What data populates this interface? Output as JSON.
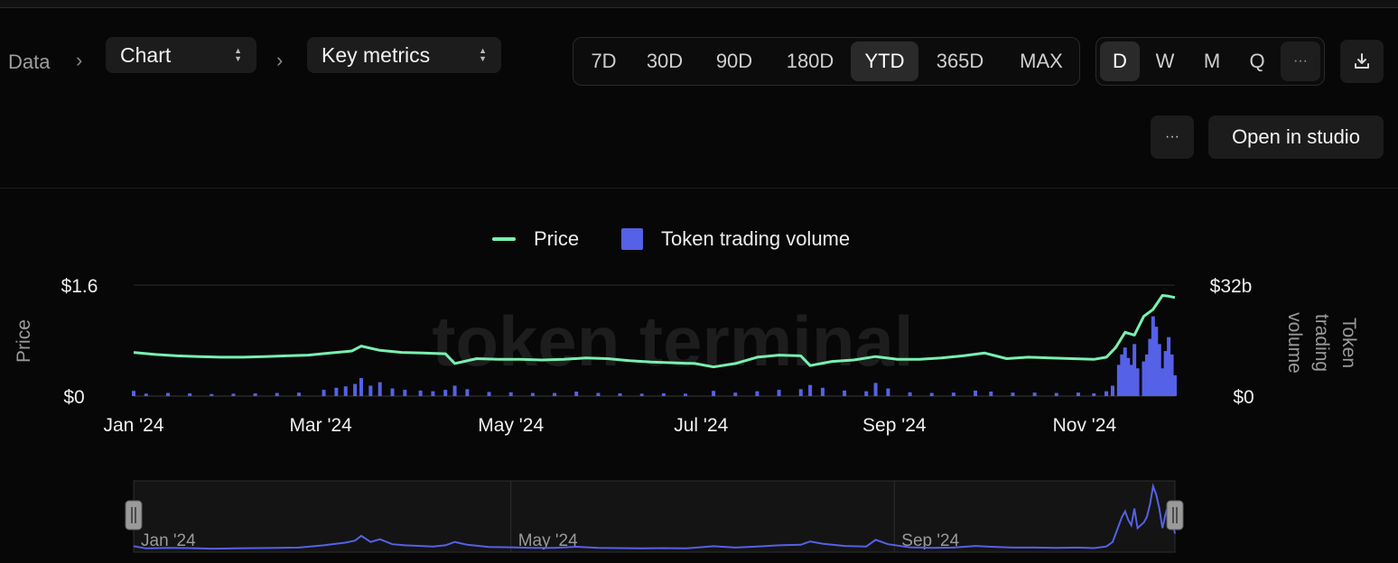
{
  "toolbar": {
    "breadcrumb_root": "Data",
    "view_select": "Chart",
    "metric_select": "Key metrics",
    "ranges": [
      "7D",
      "30D",
      "90D",
      "180D",
      "YTD",
      "365D",
      "MAX"
    ],
    "active_range": "YTD",
    "granularities": [
      "D",
      "W",
      "M",
      "Q"
    ],
    "active_granularity": "D",
    "more_label": "···",
    "open_studio_label": "Open in studio"
  },
  "watermark": "token terminal",
  "colors": {
    "price": "#79f0b0",
    "volume": "#5561e6",
    "background": "#070707"
  },
  "chart_data": {
    "type": "line+bar",
    "x_range": [
      "2024-01-01",
      "2024-11-30"
    ],
    "x_ticks": [
      "Jan '24",
      "Mar '24",
      "May '24",
      "Jul '24",
      "Sep '24",
      "Nov '24"
    ],
    "y_left": {
      "label": "Price",
      "range": [
        0,
        1.6
      ],
      "tick_labels": [
        "$0",
        "$1.6"
      ]
    },
    "y_right": {
      "label": "Token trading volume",
      "range": [
        0,
        32000000000
      ],
      "tick_labels": [
        "$0",
        "$32b"
      ]
    },
    "legend": [
      "Price",
      "Token trading volume"
    ],
    "legend_position": "top-center",
    "series": [
      {
        "name": "Price",
        "type": "line",
        "axis": "left",
        "points": [
          [
            "2024-01-01",
            0.63
          ],
          [
            "2024-01-08",
            0.6
          ],
          [
            "2024-01-15",
            0.58
          ],
          [
            "2024-01-22",
            0.57
          ],
          [
            "2024-01-29",
            0.56
          ],
          [
            "2024-02-05",
            0.56
          ],
          [
            "2024-02-12",
            0.57
          ],
          [
            "2024-02-19",
            0.58
          ],
          [
            "2024-02-26",
            0.59
          ],
          [
            "2024-03-04",
            0.62
          ],
          [
            "2024-03-11",
            0.65
          ],
          [
            "2024-03-14",
            0.72
          ],
          [
            "2024-03-20",
            0.66
          ],
          [
            "2024-03-27",
            0.63
          ],
          [
            "2024-04-03",
            0.62
          ],
          [
            "2024-04-10",
            0.61
          ],
          [
            "2024-04-13",
            0.47
          ],
          [
            "2024-04-20",
            0.54
          ],
          [
            "2024-04-27",
            0.53
          ],
          [
            "2024-05-04",
            0.53
          ],
          [
            "2024-05-11",
            0.52
          ],
          [
            "2024-05-18",
            0.53
          ],
          [
            "2024-05-25",
            0.55
          ],
          [
            "2024-06-01",
            0.54
          ],
          [
            "2024-06-08",
            0.51
          ],
          [
            "2024-06-15",
            0.49
          ],
          [
            "2024-06-22",
            0.48
          ],
          [
            "2024-06-29",
            0.47
          ],
          [
            "2024-07-05",
            0.42
          ],
          [
            "2024-07-12",
            0.47
          ],
          [
            "2024-07-19",
            0.56
          ],
          [
            "2024-07-26",
            0.59
          ],
          [
            "2024-08-02",
            0.58
          ],
          [
            "2024-08-05",
            0.44
          ],
          [
            "2024-08-12",
            0.5
          ],
          [
            "2024-08-19",
            0.52
          ],
          [
            "2024-08-26",
            0.57
          ],
          [
            "2024-09-02",
            0.53
          ],
          [
            "2024-09-09",
            0.53
          ],
          [
            "2024-09-16",
            0.55
          ],
          [
            "2024-09-23",
            0.58
          ],
          [
            "2024-09-30",
            0.62
          ],
          [
            "2024-10-07",
            0.54
          ],
          [
            "2024-10-14",
            0.56
          ],
          [
            "2024-10-21",
            0.55
          ],
          [
            "2024-10-28",
            0.54
          ],
          [
            "2024-11-04",
            0.53
          ],
          [
            "2024-11-08",
            0.56
          ],
          [
            "2024-11-11",
            0.7
          ],
          [
            "2024-11-14",
            0.92
          ],
          [
            "2024-11-17",
            0.88
          ],
          [
            "2024-11-20",
            1.15
          ],
          [
            "2024-11-23",
            1.25
          ],
          [
            "2024-11-26",
            1.45
          ],
          [
            "2024-11-28",
            1.44
          ],
          [
            "2024-11-30",
            1.42
          ]
        ]
      },
      {
        "name": "Token trading volume",
        "type": "bar",
        "axis": "right",
        "points": [
          [
            "2024-01-01",
            1500000000
          ],
          [
            "2024-01-05",
            700000000
          ],
          [
            "2024-01-12",
            900000000
          ],
          [
            "2024-01-19",
            800000000
          ],
          [
            "2024-01-26",
            600000000
          ],
          [
            "2024-02-02",
            700000000
          ],
          [
            "2024-02-09",
            800000000
          ],
          [
            "2024-02-16",
            900000000
          ],
          [
            "2024-02-23",
            1000000000
          ],
          [
            "2024-03-02",
            1800000000
          ],
          [
            "2024-03-06",
            2400000000
          ],
          [
            "2024-03-09",
            2800000000
          ],
          [
            "2024-03-12",
            3500000000
          ],
          [
            "2024-03-14",
            5200000000
          ],
          [
            "2024-03-17",
            3000000000
          ],
          [
            "2024-03-20",
            4000000000
          ],
          [
            "2024-03-24",
            2200000000
          ],
          [
            "2024-03-28",
            1800000000
          ],
          [
            "2024-04-02",
            1600000000
          ],
          [
            "2024-04-06",
            1400000000
          ],
          [
            "2024-04-10",
            1800000000
          ],
          [
            "2024-04-13",
            3000000000
          ],
          [
            "2024-04-17",
            2000000000
          ],
          [
            "2024-04-24",
            1200000000
          ],
          [
            "2024-05-01",
            1100000000
          ],
          [
            "2024-05-08",
            900000000
          ],
          [
            "2024-05-15",
            900000000
          ],
          [
            "2024-05-22",
            1300000000
          ],
          [
            "2024-05-29",
            900000000
          ],
          [
            "2024-06-05",
            800000000
          ],
          [
            "2024-06-12",
            700000000
          ],
          [
            "2024-06-19",
            800000000
          ],
          [
            "2024-06-26",
            700000000
          ],
          [
            "2024-07-05",
            1500000000
          ],
          [
            "2024-07-12",
            1000000000
          ],
          [
            "2024-07-19",
            1400000000
          ],
          [
            "2024-07-26",
            1800000000
          ],
          [
            "2024-08-02",
            2000000000
          ],
          [
            "2024-08-05",
            3200000000
          ],
          [
            "2024-08-09",
            2400000000
          ],
          [
            "2024-08-16",
            1600000000
          ],
          [
            "2024-08-23",
            1400000000
          ],
          [
            "2024-08-26",
            3800000000
          ],
          [
            "2024-08-30",
            2200000000
          ],
          [
            "2024-09-06",
            1100000000
          ],
          [
            "2024-09-13",
            900000000
          ],
          [
            "2024-09-20",
            1000000000
          ],
          [
            "2024-09-27",
            1600000000
          ],
          [
            "2024-10-02",
            1300000000
          ],
          [
            "2024-10-09",
            1000000000
          ],
          [
            "2024-10-16",
            1000000000
          ],
          [
            "2024-10-23",
            900000000
          ],
          [
            "2024-10-30",
            1000000000
          ],
          [
            "2024-11-04",
            800000000
          ],
          [
            "2024-11-08",
            1400000000
          ],
          [
            "2024-11-10",
            3000000000
          ],
          [
            "2024-11-12",
            9000000000
          ],
          [
            "2024-11-13",
            12000000000
          ],
          [
            "2024-11-14",
            14000000000
          ],
          [
            "2024-11-15",
            11000000000
          ],
          [
            "2024-11-16",
            9000000000
          ],
          [
            "2024-11-17",
            15000000000
          ],
          [
            "2024-11-18",
            8000000000
          ],
          [
            "2024-11-20",
            10000000000
          ],
          [
            "2024-11-21",
            12000000000
          ],
          [
            "2024-11-22",
            16500000000
          ],
          [
            "2024-11-23",
            23000000000
          ],
          [
            "2024-11-24",
            20000000000
          ],
          [
            "2024-11-25",
            15000000000
          ],
          [
            "2024-11-26",
            8000000000
          ],
          [
            "2024-11-27",
            13000000000
          ],
          [
            "2024-11-28",
            17000000000
          ],
          [
            "2024-11-29",
            12000000000
          ],
          [
            "2024-11-30",
            6000000000
          ]
        ]
      }
    ],
    "navigator": {
      "tick_labels": [
        "Jan '24",
        "May '24",
        "Sep '24"
      ],
      "selection": [
        "2024-01-01",
        "2024-11-30"
      ]
    }
  }
}
